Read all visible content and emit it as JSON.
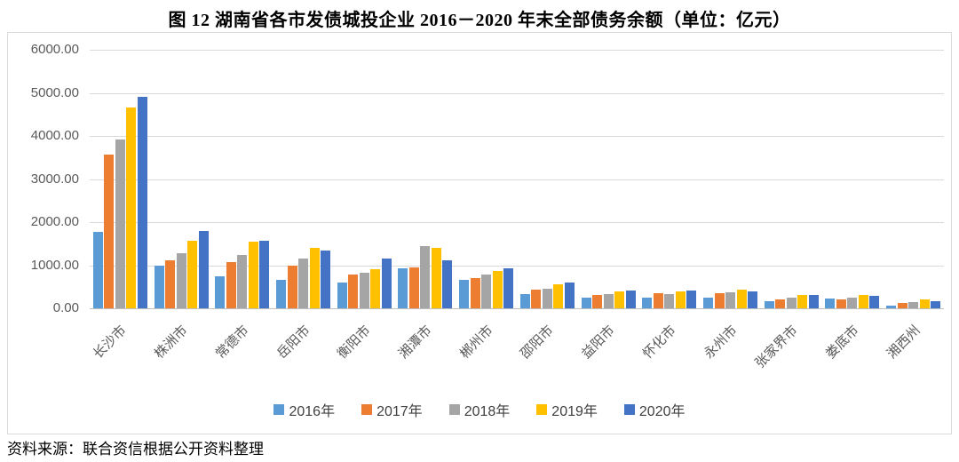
{
  "page": {
    "title": "图 12  湖南省各市发债城投企业 2016－2020 年末全部债务余额（单位：亿元）",
    "source_note": "资料来源：联合资信根据公开资料整理"
  },
  "colors": {
    "grid": "#D9D9D9",
    "zero_axis": "#BFBFBF",
    "axis_text": "#595959",
    "legend_text": "#404040",
    "frame_border": "#D9D9D9"
  },
  "chart_data": {
    "type": "bar",
    "title": "湖南省各市发债城投企业 2016－2020 年末全部债务余额",
    "unit": "亿元",
    "categories": [
      "长沙市",
      "株洲市",
      "常德市",
      "岳阳市",
      "衡阳市",
      "湘潭市",
      "郴州市",
      "邵阳市",
      "益阳市",
      "怀化市",
      "永州市",
      "张家界市",
      "娄底市",
      "湘西州"
    ],
    "series": [
      {
        "name": "2016年",
        "color": "#5B9BD5",
        "values": [
          1780,
          980,
          750,
          660,
          600,
          920,
          650,
          340,
          240,
          250,
          240,
          160,
          220,
          60
        ]
      },
      {
        "name": "2017年",
        "color": "#ED7D31",
        "values": [
          3570,
          1110,
          1070,
          1000,
          780,
          950,
          700,
          430,
          300,
          350,
          350,
          200,
          200,
          130
        ]
      },
      {
        "name": "2018年",
        "color": "#A5A5A5",
        "values": [
          3920,
          1270,
          1230,
          1160,
          820,
          1450,
          780,
          450,
          330,
          340,
          380,
          250,
          250,
          150
        ]
      },
      {
        "name": "2019年",
        "color": "#FFC000",
        "values": [
          4650,
          1560,
          1550,
          1400,
          910,
          1400,
          870,
          550,
          390,
          400,
          430,
          310,
          300,
          200
        ]
      },
      {
        "name": "2020年",
        "color": "#4472C4",
        "values": [
          4900,
          1800,
          1570,
          1350,
          1150,
          1120,
          930,
          600,
          420,
          410,
          400,
          310,
          280,
          160
        ]
      }
    ],
    "ylim": [
      0,
      6000
    ],
    "ytick_step": 1000,
    "yticks": [
      "0.00",
      "1000.00",
      "2000.00",
      "3000.00",
      "4000.00",
      "5000.00",
      "6000.00"
    ],
    "grid": true,
    "legend_position": "bottom"
  }
}
